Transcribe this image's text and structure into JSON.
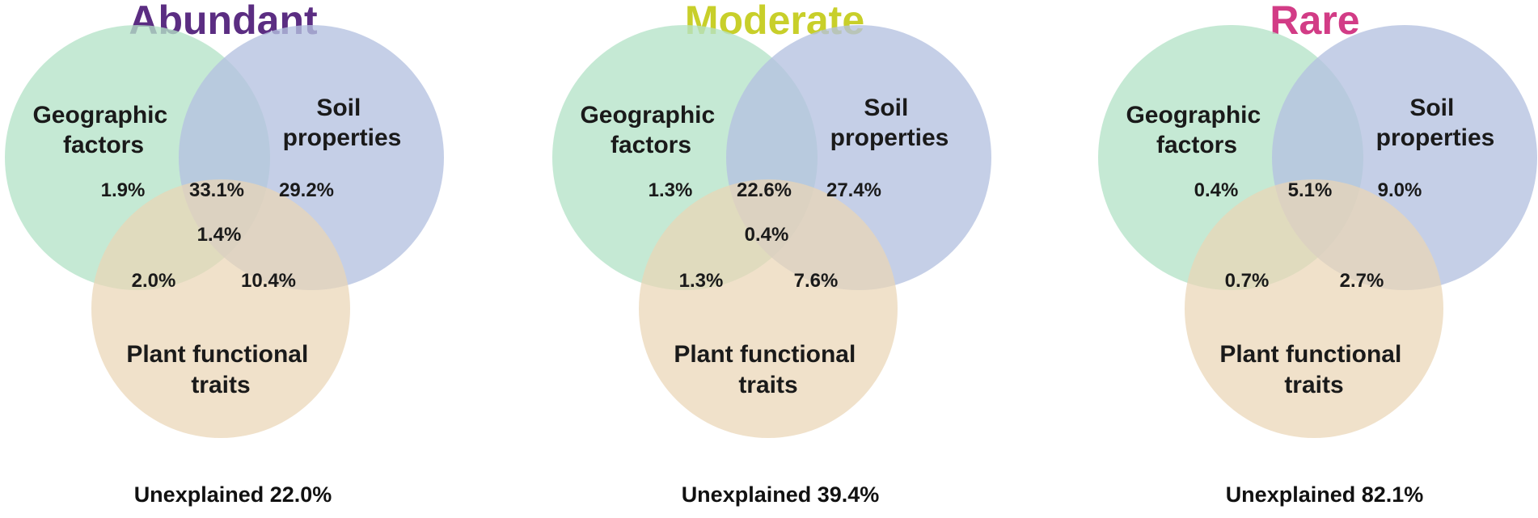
{
  "panels": [
    {
      "title": "Abundant",
      "title_color": "#5b2d82",
      "set_a": [
        "Geographic",
        "factors"
      ],
      "set_b": [
        "Soil",
        "properties"
      ],
      "set_c": [
        "Plant functional",
        "traits"
      ],
      "only_a": "1.9%",
      "a_and_b": "33.1%",
      "only_b": "29.2%",
      "a_b_c": "1.4%",
      "a_and_c": "2.0%",
      "b_and_c": "10.4%",
      "unexplained": "Unexplained 22.0%"
    },
    {
      "title": "Moderate",
      "title_color": "#c8cf2a",
      "set_a": [
        "Geographic",
        "factors"
      ],
      "set_b": [
        "Soil",
        "properties"
      ],
      "set_c": [
        "Plant functional",
        "traits"
      ],
      "only_a": "1.3%",
      "a_and_b": "22.6%",
      "only_b": "27.4%",
      "a_b_c": "0.4%",
      "a_and_c": "1.3%",
      "b_and_c": "7.6%",
      "unexplained": "Unexplained 39.4%"
    },
    {
      "title": "Rare",
      "title_color": "#d23c86",
      "set_a": [
        "Geographic",
        "factors"
      ],
      "set_b": [
        "Soil",
        "properties"
      ],
      "set_c": [
        "Plant functional",
        "traits"
      ],
      "only_a": "0.4%",
      "a_and_b": "5.1%",
      "only_b": "9.0%",
      "a_b_c": "",
      "a_and_c": "0.7%",
      "b_and_c": "2.7%",
      "unexplained": "Unexplained 82.1%"
    }
  ],
  "colors": {
    "geographic": "#b5e3c8",
    "soil": "#b5c2e0",
    "plant": "#ead6b6",
    "stroke": "#ffffff"
  }
}
